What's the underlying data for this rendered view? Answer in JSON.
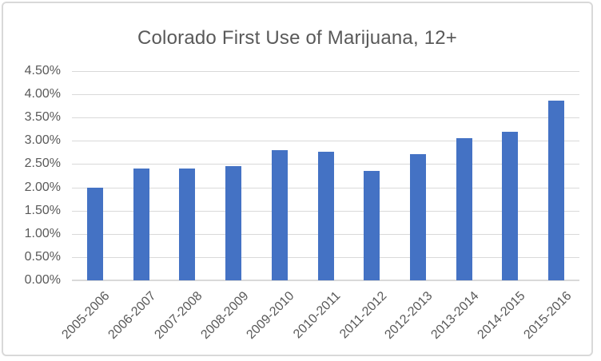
{
  "chart_data": {
    "type": "bar",
    "title": "Colorado First Use of Marijuana, 12+",
    "categories": [
      "2005-2006",
      "2006-2007",
      "2007-2008",
      "2008-2009",
      "2009-2010",
      "2010-2011",
      "2011-2012",
      "2012-2013",
      "2013-2014",
      "2014-2015",
      "2015-2016"
    ],
    "values": [
      2.0,
      2.4,
      2.4,
      2.46,
      2.8,
      2.77,
      2.35,
      2.72,
      3.06,
      3.19,
      3.86
    ],
    "value_unit": "percent",
    "xlabel": "",
    "ylabel": "",
    "ylim": [
      0,
      4.5
    ],
    "ytick_step": 0.5,
    "ytick_labels": [
      "0.00%",
      "0.50%",
      "1.00%",
      "1.50%",
      "2.00%",
      "2.50%",
      "3.00%",
      "3.50%",
      "4.00%",
      "4.50%"
    ],
    "grid": true,
    "legend": "none",
    "x_label_rotation_deg": 45,
    "colors": {
      "bar": "#4472C4",
      "gridline": "#D9D9D9",
      "axis_line": "#D9D9D9",
      "text": "#595959",
      "frame_border": "#D9D9D9",
      "background": "#FFFFFF"
    }
  }
}
